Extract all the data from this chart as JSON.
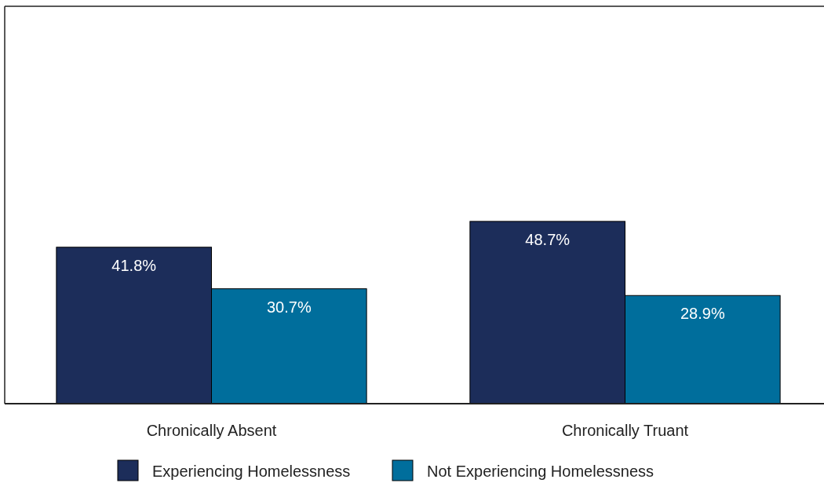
{
  "chart_data": {
    "type": "bar",
    "categories": [
      "Chronically Absent",
      "Chronically Truant"
    ],
    "series": [
      {
        "name": "Experiencing Homelessness",
        "color": "#1c2d5a",
        "values": [
          41.8,
          48.7
        ],
        "value_labels": [
          "41.8%",
          "48.7%"
        ]
      },
      {
        "name": "Not Experiencing Homelessness",
        "color": "#006e9c",
        "values": [
          30.7,
          28.9
        ],
        "value_labels": [
          "30.7%",
          "28.9%"
        ]
      }
    ],
    "legend": "bottom"
  }
}
